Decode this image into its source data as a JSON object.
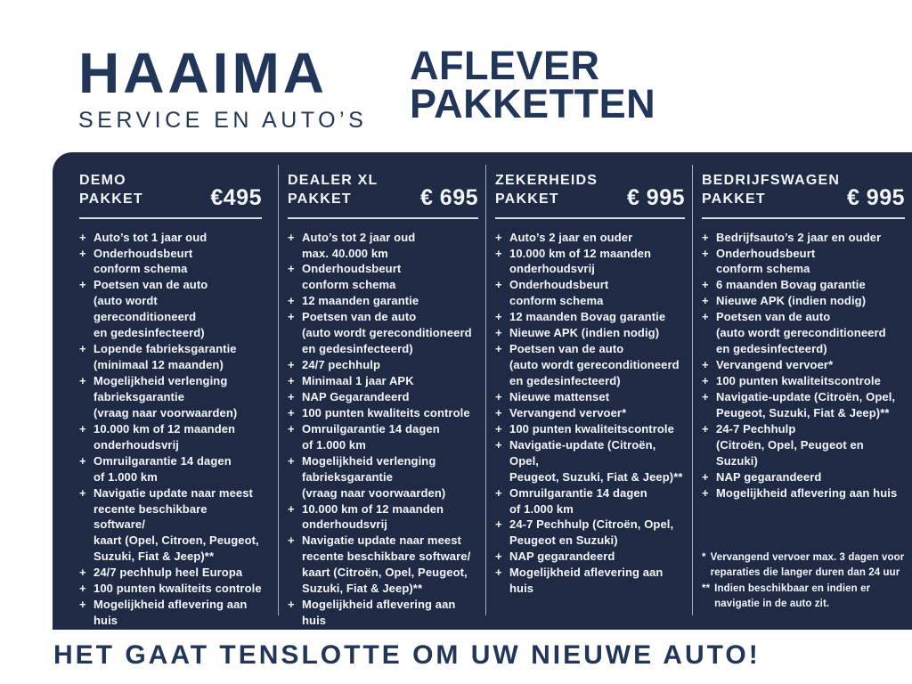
{
  "brand": {
    "name": "HAAIMA",
    "tagline": "SERVICE EN AUTO’S"
  },
  "page_title": {
    "line1": "AFLEVER",
    "line2": "PAKKETTEN"
  },
  "list_marker": "+",
  "packages": [
    {
      "name_lines": [
        "DEMO",
        "PAKKET"
      ],
      "price": "€495",
      "items": [
        [
          "Auto’s tot 1 jaar oud"
        ],
        [
          "Onderhoudsbeurt",
          "conform schema"
        ],
        [
          "Poetsen van de auto",
          "(auto wordt gereconditioneerd",
          "en gedesinfecteerd)"
        ],
        [
          "Lopende fabrieksgarantie",
          "(minimaal 12 maanden)"
        ],
        [
          "Mogelijkheid verlenging",
          "fabrieksgarantie",
          "(vraag naar voorwaarden)"
        ],
        [
          "10.000 km of 12 maanden",
          "onderhoudsvrij"
        ],
        [
          "Omruilgarantie 14 dagen",
          "of 1.000 km"
        ],
        [
          "Navigatie update naar meest",
          "recente beschikbare software/",
          "kaart (Opel, Citroen, Peugeot,",
          "Suzuki, Fiat & Jeep)**"
        ],
        [
          "24/7 pechhulp heel Europa"
        ],
        [
          "100 punten kwaliteits controle"
        ],
        [
          "Mogelijkheid aflevering aan huis"
        ]
      ]
    },
    {
      "name_lines": [
        "DEALER XL",
        "PAKKET"
      ],
      "price": "€ 695",
      "items": [
        [
          "Auto’s tot 2 jaar oud",
          "max. 40.000 km"
        ],
        [
          "Onderhoudsbeurt",
          "conform schema"
        ],
        [
          "12 maanden garantie"
        ],
        [
          "Poetsen van de auto",
          "(auto wordt gereconditioneerd",
          "en gedesinfecteerd)"
        ],
        [
          "24/7 pechhulp"
        ],
        [
          "Minimaal 1 jaar APK"
        ],
        [
          "NAP Gegarandeerd"
        ],
        [
          "100 punten kwaliteits controle"
        ],
        [
          "Omruilgarantie 14 dagen",
          "of 1.000 km"
        ],
        [
          "Mogelijkheid verlenging",
          "fabrieksgarantie",
          "(vraag naar voorwaarden)"
        ],
        [
          "10.000 km of 12 maanden",
          "onderhoudsvrij"
        ],
        [
          "Navigatie update naar meest",
          "recente beschikbare software/",
          "kaart (Citroën, Opel, Peugeot,",
          "Suzuki, Fiat & Jeep)**"
        ],
        [
          "Mogelijkheid aflevering aan huis"
        ]
      ]
    },
    {
      "name_lines": [
        "ZEKERHEIDS",
        "PAKKET"
      ],
      "price": "€ 995",
      "items": [
        [
          "Auto’s 2 jaar en ouder"
        ],
        [
          "10.000 km of 12 maanden",
          "onderhoudsvrij"
        ],
        [
          "Onderhoudsbeurt",
          "conform schema"
        ],
        [
          "12 maanden Bovag garantie"
        ],
        [
          "Nieuwe APK (indien nodig)"
        ],
        [
          "Poetsen van de auto",
          "(auto wordt gereconditioneerd",
          "en gedesinfecteerd)"
        ],
        [
          "Nieuwe mattenset"
        ],
        [
          "Vervangend vervoer*"
        ],
        [
          "100 punten kwaliteitscontrole"
        ],
        [
          "Navigatie-update (Citroën, Opel,",
          "Peugeot, Suzuki, Fiat & Jeep)**"
        ],
        [
          "Omruilgarantie 14 dagen",
          "of 1.000 km"
        ],
        [
          "24-7 Pechhulp (Citroën, Opel,",
          "Peugeot en Suzuki)"
        ],
        [
          "NAP gegarandeerd"
        ],
        [
          "Mogelijkheid aflevering aan huis"
        ]
      ]
    },
    {
      "name_lines": [
        "BEDRIJFSWAGEN",
        "PAKKET"
      ],
      "price": "€ 995",
      "items": [
        [
          "Bedrijfsauto’s 2 jaar en ouder"
        ],
        [
          "Onderhoudsbeurt",
          "conform schema"
        ],
        [
          "6 maanden Bovag garantie"
        ],
        [
          "Nieuwe APK (indien nodig)"
        ],
        [
          "Poetsen van de auto",
          "(auto wordt gereconditioneerd",
          "en gedesinfecteerd)"
        ],
        [
          "Vervangend vervoer*"
        ],
        [
          "100 punten kwaliteitscontrole"
        ],
        [
          "Navigatie-update (Citroën, Opel,",
          "Peugeot, Suzuki, Fiat & Jeep)**"
        ],
        [
          "24-7 Pechhulp",
          "(Citroën, Opel, Peugeot en Suzuki)"
        ],
        [
          "NAP gegarandeerd"
        ],
        [
          "Mogelijkheid aflevering aan huis"
        ]
      ]
    }
  ],
  "footnotes": [
    {
      "marker": "*",
      "lines": [
        "Vervangend vervoer max. 3 dagen voor",
        "reparaties die langer duren dan 24 uur"
      ]
    },
    {
      "marker": "**",
      "lines": [
        "Indien beschikbaar en indien er",
        "navigatie in de auto zit."
      ]
    }
  ],
  "footer": {
    "tagline": "HET GAAT TENSLOTTE OM UW NIEUWE AUTO!"
  },
  "colors": {
    "panel_bg": "#1f2b45",
    "navy": "#223659",
    "text_light": "#f3f5f8",
    "divider": "#a7aeba",
    "rule": "#d9dde4"
  }
}
